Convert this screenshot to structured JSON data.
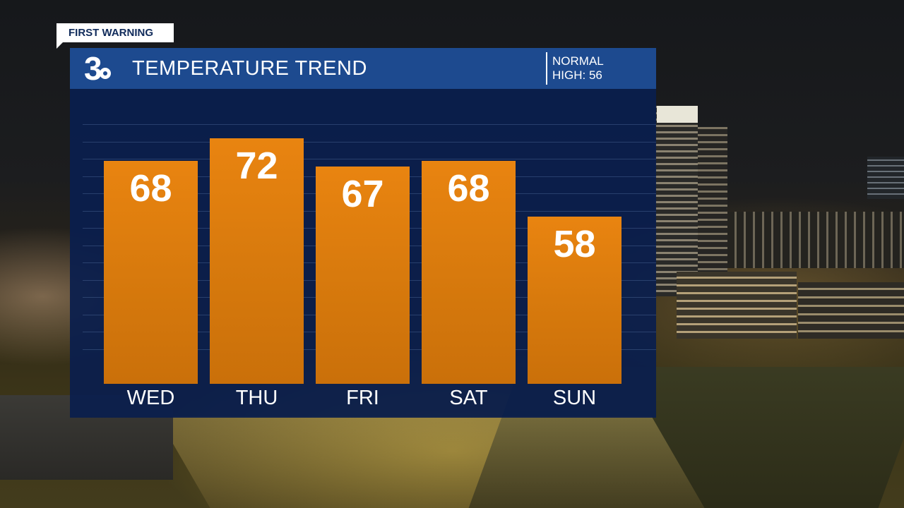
{
  "tag": {
    "label": "FIRST WARNING"
  },
  "header": {
    "logo_number": "3",
    "title": "TEMPERATURE TREND",
    "normal_line1": "NORMAL",
    "normal_line2": "HIGH: 56"
  },
  "chart_data": {
    "type": "bar",
    "title": "TEMPERATURE TREND",
    "categories": [
      "WED",
      "THU",
      "FRI",
      "SAT",
      "SUN"
    ],
    "values": [
      68,
      72,
      67,
      68,
      58
    ],
    "value_labels": [
      "68",
      "72",
      "67",
      "68",
      "58"
    ],
    "bar_color": "#e07e0e",
    "grid": true,
    "reference": {
      "label": "NORMAL HIGH",
      "value": 56
    }
  },
  "colors": {
    "panel_bg": "#0a1e4e",
    "header_bg": "#1d4a8f",
    "bar": "#e07e0e",
    "text": "#ffffff"
  }
}
